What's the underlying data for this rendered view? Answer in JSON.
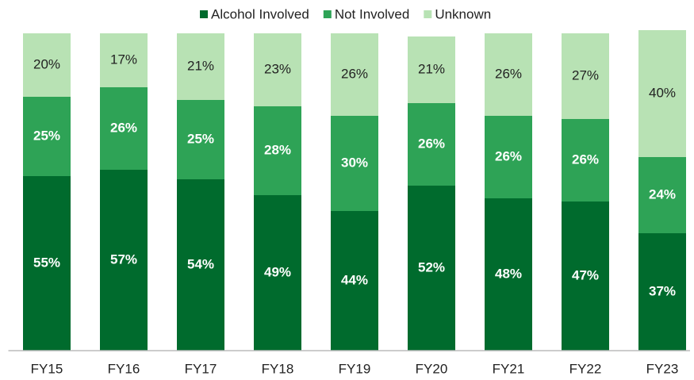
{
  "chart_data": {
    "type": "stacked_bar",
    "categories": [
      "FY15",
      "FY16",
      "FY17",
      "FY18",
      "FY19",
      "FY20",
      "FY21",
      "FY22",
      "FY23"
    ],
    "series": [
      {
        "name": "Alcohol Involved",
        "color": "#006b2d",
        "values": [
          55,
          57,
          54,
          49,
          44,
          52,
          48,
          47,
          37
        ],
        "value_labels": [
          "55%",
          "57%",
          "54%",
          "49%",
          "44%",
          "52%",
          "48%",
          "47%",
          "37%"
        ]
      },
      {
        "name": "Not Involved",
        "color": "#2ea356",
        "values": [
          25,
          26,
          25,
          28,
          30,
          26,
          26,
          26,
          24
        ],
        "value_labels": [
          "25%",
          "26%",
          "25%",
          "28%",
          "30%",
          "26%",
          "26%",
          "26%",
          "24%"
        ]
      },
      {
        "name": "Unknown",
        "color": "#b8e2b4",
        "values": [
          20,
          17,
          21,
          23,
          26,
          21,
          26,
          27,
          40
        ],
        "value_labels": [
          "20%",
          "17%",
          "21%",
          "23%",
          "26%",
          "21%",
          "26%",
          "27%",
          "40%"
        ]
      }
    ],
    "ylim": [
      0,
      100
    ],
    "legend": "top"
  }
}
